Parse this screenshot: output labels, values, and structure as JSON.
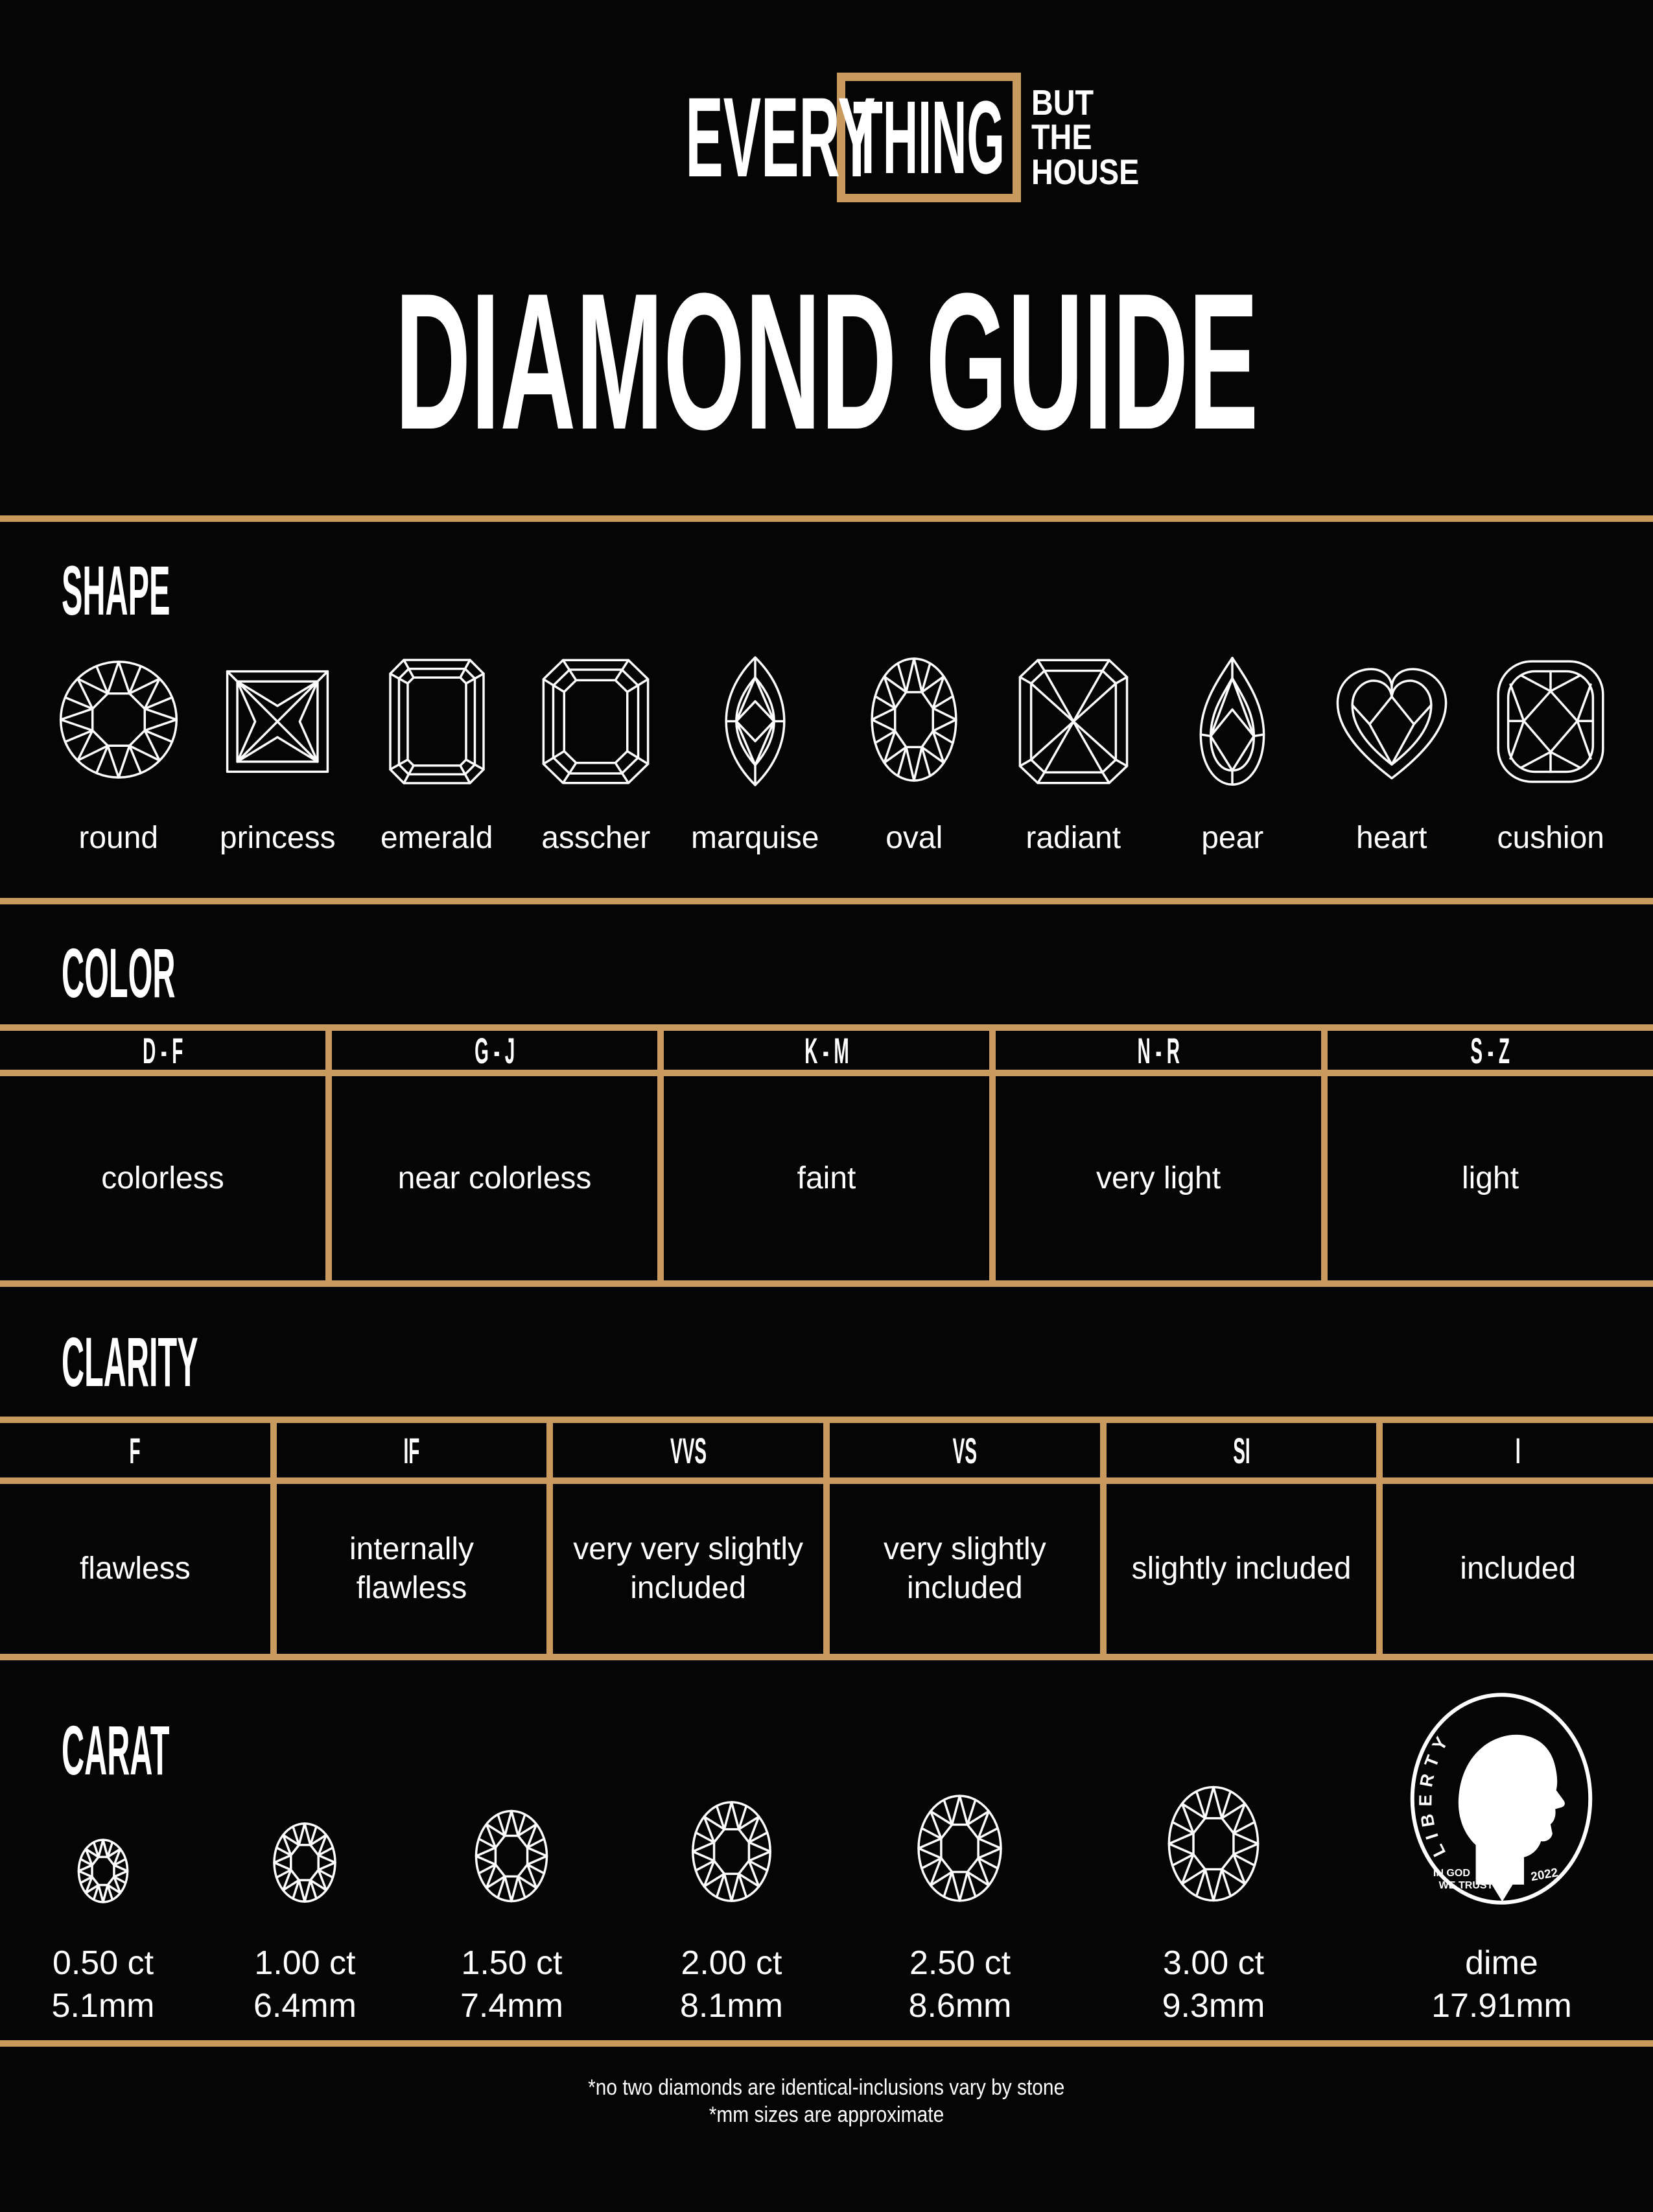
{
  "colors": {
    "gold": "#c99a5e",
    "background": "#050505",
    "text": "#ffffff"
  },
  "brand": {
    "word1": "EVERY",
    "word2": "THING",
    "tagline": [
      "BUT",
      "THE",
      "HOUSE"
    ]
  },
  "title": "DIAMOND GUIDE",
  "sections": {
    "shape": {
      "heading": "SHAPE",
      "items": [
        {
          "label": "round",
          "icon": "round-diamond-icon"
        },
        {
          "label": "princess",
          "icon": "princess-diamond-icon"
        },
        {
          "label": "emerald",
          "icon": "emerald-diamond-icon"
        },
        {
          "label": "asscher",
          "icon": "asscher-diamond-icon"
        },
        {
          "label": "marquise",
          "icon": "marquise-diamond-icon"
        },
        {
          "label": "oval",
          "icon": "oval-diamond-icon"
        },
        {
          "label": "radiant",
          "icon": "radiant-diamond-icon"
        },
        {
          "label": "pear",
          "icon": "pear-diamond-icon"
        },
        {
          "label": "heart",
          "icon": "heart-diamond-icon"
        },
        {
          "label": "cushion",
          "icon": "cushion-diamond-icon"
        }
      ]
    },
    "color": {
      "heading": "COLOR",
      "columns": [
        {
          "grade": "D - F",
          "label": "colorless"
        },
        {
          "grade": "G - J",
          "label": "near colorless"
        },
        {
          "grade": "K - M",
          "label": "faint"
        },
        {
          "grade": "N - R",
          "label": "very light"
        },
        {
          "grade": "S - Z",
          "label": "light"
        }
      ]
    },
    "clarity": {
      "heading": "CLARITY",
      "columns": [
        {
          "grade": "F",
          "label": "flawless"
        },
        {
          "grade": "IF",
          "label": "internally flawless"
        },
        {
          "grade": "VVS",
          "label": "very very slightly included"
        },
        {
          "grade": "VS",
          "label": "very slightly included"
        },
        {
          "grade": "SI",
          "label": "slightly included"
        },
        {
          "grade": "I",
          "label": "included"
        }
      ]
    },
    "carat": {
      "heading": "CARAT",
      "items": [
        {
          "ct": "0.50 ct",
          "mm": "5.1mm"
        },
        {
          "ct": "1.00 ct",
          "mm": "6.4mm"
        },
        {
          "ct": "1.50 ct",
          "mm": "7.4mm"
        },
        {
          "ct": "2.00 ct",
          "mm": "8.1mm"
        },
        {
          "ct": "2.50 ct",
          "mm": "8.6mm"
        },
        {
          "ct": "3.00 ct",
          "mm": "9.3mm"
        },
        {
          "ct": "dime",
          "mm": "17.91mm"
        }
      ],
      "coin": {
        "top_word": "LIBERTY",
        "motto_line1": "IN GOD",
        "motto_line2": "WE TRUST",
        "year": "2022",
        "icon": "dime-coin-icon"
      }
    }
  },
  "footnotes": [
    "*no two diamonds are identical-inclusions vary by stone",
    "*mm sizes are approximate"
  ]
}
